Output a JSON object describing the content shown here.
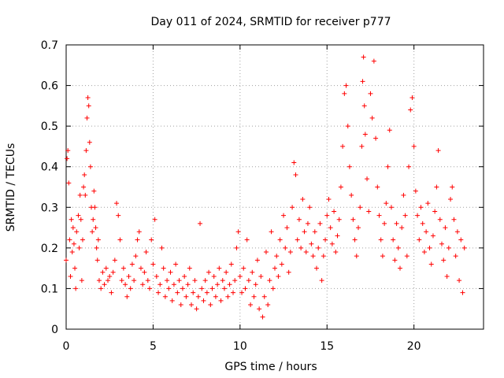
{
  "chart_data": {
    "type": "scatter",
    "title": "Day 011 of 2024, SRMTID for receiver p777",
    "xlabel": "GPS time / hours",
    "ylabel": "SRMTID / TECUs",
    "xlim": [
      0,
      24
    ],
    "ylim": [
      0,
      0.7
    ],
    "xticks": [
      0,
      5,
      10,
      15,
      20
    ],
    "yticks": [
      0,
      0.1,
      0.2,
      0.3,
      0.4,
      0.5,
      0.6,
      0.7
    ],
    "ytick_labels": [
      "0",
      "0.1",
      "0.2",
      "0.3",
      "0.4",
      "0.5",
      "0.6",
      "0.7"
    ],
    "grid": true,
    "marker": "+",
    "color": "#ff0000",
    "series": [
      {
        "name": "SRMTID",
        "points": [
          [
            0.0,
            0.17
          ],
          [
            0.05,
            0.42
          ],
          [
            0.1,
            0.44
          ],
          [
            0.15,
            0.36
          ],
          [
            0.2,
            0.22
          ],
          [
            0.25,
            0.13
          ],
          [
            0.3,
            0.27
          ],
          [
            0.35,
            0.19
          ],
          [
            0.4,
            0.25
          ],
          [
            0.45,
            0.21
          ],
          [
            0.5,
            0.15
          ],
          [
            0.55,
            0.1
          ],
          [
            0.6,
            0.24
          ],
          [
            0.7,
            0.28
          ],
          [
            0.75,
            0.2
          ],
          [
            0.8,
            0.33
          ],
          [
            0.85,
            0.27
          ],
          [
            0.9,
            0.12
          ],
          [
            0.95,
            0.22
          ],
          [
            1.0,
            0.35
          ],
          [
            1.05,
            0.38
          ],
          [
            1.1,
            0.33
          ],
          [
            1.15,
            0.44
          ],
          [
            1.2,
            0.52
          ],
          [
            1.25,
            0.57
          ],
          [
            1.3,
            0.55
          ],
          [
            1.35,
            0.46
          ],
          [
            1.4,
            0.4
          ],
          [
            1.45,
            0.3
          ],
          [
            1.5,
            0.24
          ],
          [
            1.55,
            0.27
          ],
          [
            1.6,
            0.34
          ],
          [
            1.65,
            0.3
          ],
          [
            1.7,
            0.25
          ],
          [
            1.75,
            0.2
          ],
          [
            1.8,
            0.17
          ],
          [
            1.85,
            0.22
          ],
          [
            1.9,
            0.12
          ],
          [
            2.0,
            0.1
          ],
          [
            2.1,
            0.14
          ],
          [
            2.2,
            0.11
          ],
          [
            2.3,
            0.15
          ],
          [
            2.4,
            0.12
          ],
          [
            2.5,
            0.13
          ],
          [
            2.6,
            0.09
          ],
          [
            2.7,
            0.14
          ],
          [
            2.8,
            0.17
          ],
          [
            2.9,
            0.31
          ],
          [
            3.0,
            0.28
          ],
          [
            3.1,
            0.22
          ],
          [
            3.2,
            0.12
          ],
          [
            3.3,
            0.15
          ],
          [
            3.4,
            0.11
          ],
          [
            3.5,
            0.08
          ],
          [
            3.6,
            0.13
          ],
          [
            3.7,
            0.1
          ],
          [
            3.8,
            0.16
          ],
          [
            3.9,
            0.12
          ],
          [
            4.0,
            0.18
          ],
          [
            4.1,
            0.22
          ],
          [
            4.2,
            0.24
          ],
          [
            4.3,
            0.15
          ],
          [
            4.4,
            0.11
          ],
          [
            4.5,
            0.14
          ],
          [
            4.6,
            0.19
          ],
          [
            4.7,
            0.12
          ],
          [
            4.8,
            0.1
          ],
          [
            4.9,
            0.22
          ],
          [
            5.0,
            0.16
          ],
          [
            5.1,
            0.27
          ],
          [
            5.2,
            0.13
          ],
          [
            5.3,
            0.09
          ],
          [
            5.4,
            0.11
          ],
          [
            5.5,
            0.2
          ],
          [
            5.6,
            0.15
          ],
          [
            5.7,
            0.08
          ],
          [
            5.8,
            0.12
          ],
          [
            5.9,
            0.1
          ],
          [
            6.0,
            0.14
          ],
          [
            6.1,
            0.07
          ],
          [
            6.2,
            0.11
          ],
          [
            6.3,
            0.16
          ],
          [
            6.4,
            0.09
          ],
          [
            6.5,
            0.12
          ],
          [
            6.6,
            0.06
          ],
          [
            6.7,
            0.1
          ],
          [
            6.8,
            0.13
          ],
          [
            6.9,
            0.08
          ],
          [
            7.0,
            0.11
          ],
          [
            7.1,
            0.15
          ],
          [
            7.2,
            0.06
          ],
          [
            7.3,
            0.09
          ],
          [
            7.4,
            0.12
          ],
          [
            7.5,
            0.05
          ],
          [
            7.6,
            0.08
          ],
          [
            7.7,
            0.26
          ],
          [
            7.8,
            0.1
          ],
          [
            7.9,
            0.07
          ],
          [
            8.0,
            0.12
          ],
          [
            8.1,
            0.09
          ],
          [
            8.2,
            0.14
          ],
          [
            8.3,
            0.06
          ],
          [
            8.4,
            0.1
          ],
          [
            8.5,
            0.13
          ],
          [
            8.6,
            0.08
          ],
          [
            8.7,
            0.11
          ],
          [
            8.8,
            0.15
          ],
          [
            8.9,
            0.07
          ],
          [
            9.0,
            0.12
          ],
          [
            9.1,
            0.1
          ],
          [
            9.2,
            0.14
          ],
          [
            9.3,
            0.08
          ],
          [
            9.4,
            0.11
          ],
          [
            9.5,
            0.16
          ],
          [
            9.6,
            0.09
          ],
          [
            9.7,
            0.12
          ],
          [
            9.8,
            0.2
          ],
          [
            9.9,
            0.24
          ],
          [
            10.0,
            0.13
          ],
          [
            10.1,
            0.09
          ],
          [
            10.2,
            0.15
          ],
          [
            10.3,
            0.1
          ],
          [
            10.4,
            0.22
          ],
          [
            10.5,
            0.12
          ],
          [
            10.6,
            0.06
          ],
          [
            10.7,
            0.14
          ],
          [
            10.8,
            0.08
          ],
          [
            10.9,
            0.11
          ],
          [
            11.0,
            0.17
          ],
          [
            11.1,
            0.05
          ],
          [
            11.2,
            0.13
          ],
          [
            11.3,
            0.03
          ],
          [
            11.4,
            0.08
          ],
          [
            11.5,
            0.19
          ],
          [
            11.6,
            0.06
          ],
          [
            11.7,
            0.12
          ],
          [
            11.8,
            0.24
          ],
          [
            11.9,
            0.1
          ],
          [
            12.0,
            0.15
          ],
          [
            12.1,
            0.18
          ],
          [
            12.2,
            0.13
          ],
          [
            12.3,
            0.22
          ],
          [
            12.4,
            0.16
          ],
          [
            12.5,
            0.28
          ],
          [
            12.6,
            0.2
          ],
          [
            12.7,
            0.25
          ],
          [
            12.8,
            0.14
          ],
          [
            12.9,
            0.19
          ],
          [
            13.0,
            0.3
          ],
          [
            13.1,
            0.41
          ],
          [
            13.2,
            0.38
          ],
          [
            13.3,
            0.22
          ],
          [
            13.4,
            0.27
          ],
          [
            13.5,
            0.2
          ],
          [
            13.6,
            0.32
          ],
          [
            13.7,
            0.24
          ],
          [
            13.8,
            0.19
          ],
          [
            13.9,
            0.26
          ],
          [
            14.0,
            0.3
          ],
          [
            14.1,
            0.21
          ],
          [
            14.2,
            0.18
          ],
          [
            14.3,
            0.24
          ],
          [
            14.4,
            0.15
          ],
          [
            14.5,
            0.2
          ],
          [
            14.6,
            0.26
          ],
          [
            14.7,
            0.12
          ],
          [
            14.8,
            0.18
          ],
          [
            14.9,
            0.22
          ],
          [
            15.0,
            0.28
          ],
          [
            15.1,
            0.32
          ],
          [
            15.2,
            0.25
          ],
          [
            15.3,
            0.21
          ],
          [
            15.4,
            0.29
          ],
          [
            15.5,
            0.19
          ],
          [
            15.6,
            0.23
          ],
          [
            15.7,
            0.27
          ],
          [
            15.8,
            0.35
          ],
          [
            15.9,
            0.45
          ],
          [
            16.0,
            0.58
          ],
          [
            16.1,
            0.6
          ],
          [
            16.2,
            0.5
          ],
          [
            16.3,
            0.4
          ],
          [
            16.4,
            0.33
          ],
          [
            16.5,
            0.27
          ],
          [
            16.6,
            0.22
          ],
          [
            16.7,
            0.18
          ],
          [
            16.8,
            0.25
          ],
          [
            16.9,
            0.3
          ],
          [
            17.0,
            0.45
          ],
          [
            17.05,
            0.61
          ],
          [
            17.1,
            0.67
          ],
          [
            17.15,
            0.55
          ],
          [
            17.2,
            0.48
          ],
          [
            17.3,
            0.37
          ],
          [
            17.4,
            0.29
          ],
          [
            17.5,
            0.58
          ],
          [
            17.6,
            0.52
          ],
          [
            17.7,
            0.66
          ],
          [
            17.8,
            0.47
          ],
          [
            17.9,
            0.35
          ],
          [
            18.0,
            0.28
          ],
          [
            18.1,
            0.22
          ],
          [
            18.2,
            0.18
          ],
          [
            18.3,
            0.26
          ],
          [
            18.4,
            0.31
          ],
          [
            18.5,
            0.4
          ],
          [
            18.6,
            0.49
          ],
          [
            18.7,
            0.3
          ],
          [
            18.8,
            0.22
          ],
          [
            18.9,
            0.17
          ],
          [
            19.0,
            0.26
          ],
          [
            19.1,
            0.2
          ],
          [
            19.2,
            0.15
          ],
          [
            19.3,
            0.25
          ],
          [
            19.4,
            0.33
          ],
          [
            19.5,
            0.28
          ],
          [
            19.6,
            0.18
          ],
          [
            19.7,
            0.4
          ],
          [
            19.8,
            0.54
          ],
          [
            19.9,
            0.57
          ],
          [
            20.0,
            0.45
          ],
          [
            20.1,
            0.34
          ],
          [
            20.2,
            0.28
          ],
          [
            20.3,
            0.22
          ],
          [
            20.4,
            0.3
          ],
          [
            20.5,
            0.26
          ],
          [
            20.6,
            0.19
          ],
          [
            20.7,
            0.24
          ],
          [
            20.8,
            0.31
          ],
          [
            20.9,
            0.2
          ],
          [
            21.0,
            0.16
          ],
          [
            21.1,
            0.23
          ],
          [
            21.2,
            0.29
          ],
          [
            21.3,
            0.35
          ],
          [
            21.4,
            0.44
          ],
          [
            21.5,
            0.27
          ],
          [
            21.6,
            0.21
          ],
          [
            21.7,
            0.17
          ],
          [
            21.8,
            0.25
          ],
          [
            21.9,
            0.13
          ],
          [
            22.0,
            0.2
          ],
          [
            22.1,
            0.32
          ],
          [
            22.2,
            0.35
          ],
          [
            22.3,
            0.27
          ],
          [
            22.4,
            0.18
          ],
          [
            22.5,
            0.24
          ],
          [
            22.6,
            0.12
          ],
          [
            22.7,
            0.22
          ],
          [
            22.8,
            0.09
          ],
          [
            22.9,
            0.2
          ]
        ]
      }
    ]
  },
  "colors": {
    "data": "#ff0000",
    "grid": "#a0a0a0",
    "axis": "#000000"
  }
}
